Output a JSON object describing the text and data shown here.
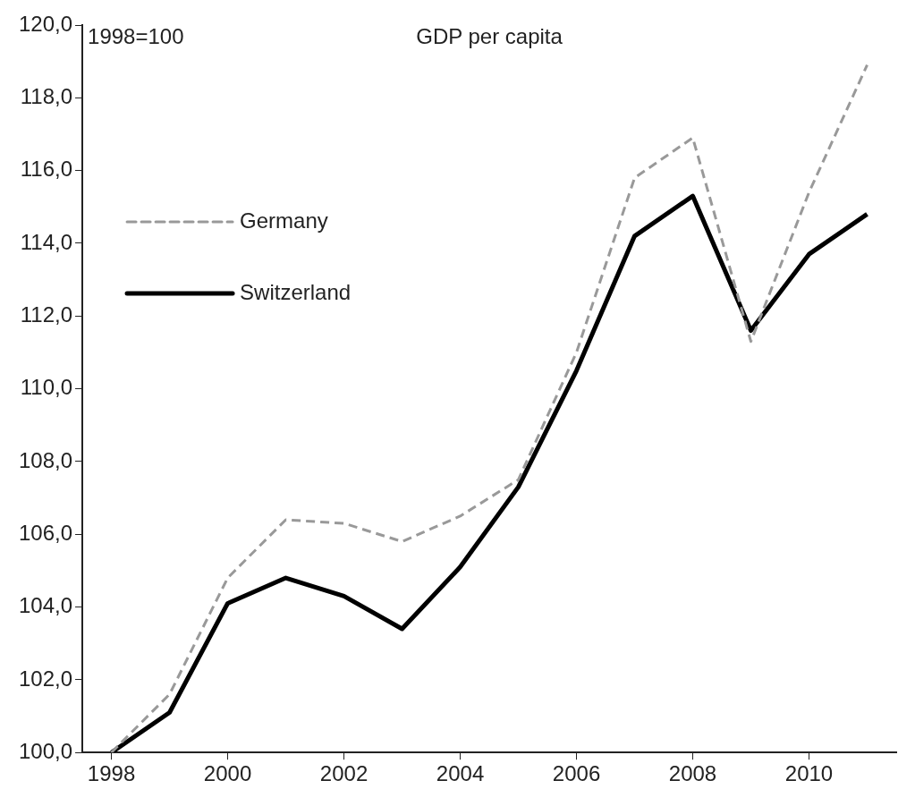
{
  "chart_data": {
    "type": "line",
    "title": "GDP per capita",
    "annotations": [
      "1998=100"
    ],
    "categories": [
      "1998",
      null,
      "2000",
      null,
      "2002",
      null,
      "2004",
      null,
      "2006",
      null,
      "2008",
      null,
      "2010",
      null
    ],
    "series": [
      {
        "name": "Germany",
        "color": "#999999",
        "line_style": "dashed",
        "values": [
          100,
          101.6,
          104.8,
          106.4,
          106.3,
          105.8,
          106.5,
          107.5,
          111.0,
          115.8,
          116.9,
          111.3,
          115.4,
          118.9
        ]
      },
      {
        "name": "Switzerland",
        "color": "#000000",
        "line_style": "solid",
        "values": [
          100,
          101.1,
          104.1,
          104.8,
          104.3,
          103.4,
          105.1,
          107.3,
          110.5,
          114.2,
          115.3,
          111.6,
          113.7,
          114.8
        ]
      }
    ],
    "ylim": [
      100,
      120
    ],
    "yticks": [
      {
        "value": 100,
        "label": "100,0"
      },
      {
        "value": 102,
        "label": "102,0"
      },
      {
        "value": 104,
        "label": "104,0"
      },
      {
        "value": 106,
        "label": "106,0"
      },
      {
        "value": 108,
        "label": "108,0"
      },
      {
        "value": 110,
        "label": "110,0"
      },
      {
        "value": 112,
        "label": "112,0"
      },
      {
        "value": 114,
        "label": "114,0"
      },
      {
        "value": 116,
        "label": "116,0"
      },
      {
        "value": 118,
        "label": "118,0"
      },
      {
        "value": 120,
        "label": "120,0"
      }
    ],
    "grid": false,
    "legend": "top left",
    "marker": "none"
  }
}
